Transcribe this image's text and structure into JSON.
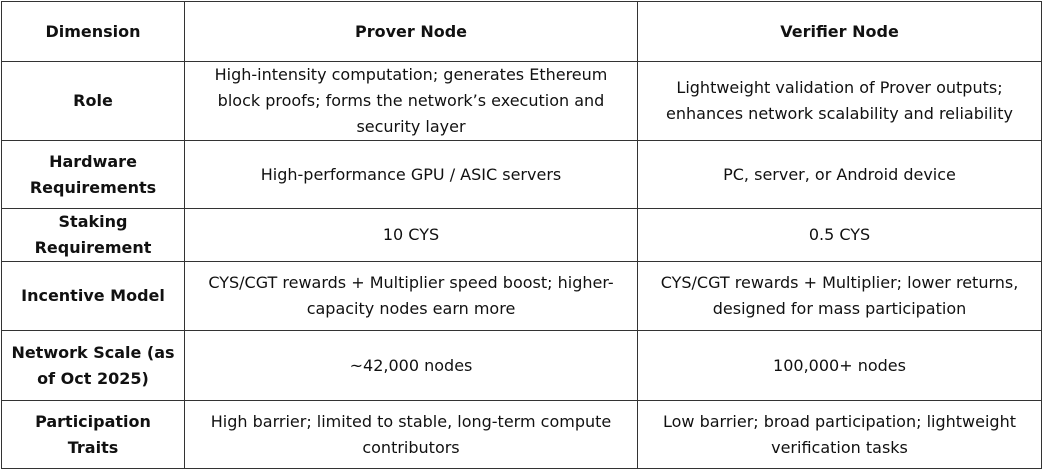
{
  "table": {
    "headers": [
      "Dimension",
      "Prover Node",
      "Verifier Node"
    ],
    "rows": [
      {
        "dimension": "Role",
        "prover": "High-intensity computation; generates Ethereum block proofs; forms the network’s execution and security layer",
        "verifier": "Lightweight validation of Prover outputs; enhances network scalability and reliability"
      },
      {
        "dimension": "Hardware Requirements",
        "prover": "High-performance GPU / ASIC servers",
        "verifier": "PC, server, or Android device"
      },
      {
        "dimension": "Staking Requirement",
        "prover": "10 CYS",
        "verifier": "0.5 CYS"
      },
      {
        "dimension": "Incentive Model",
        "prover": "CYS/CGT rewards + Multiplier speed boost; higher-capacity nodes earn more",
        "verifier": "CYS/CGT rewards + Multiplier; lower returns, designed for mass participation"
      },
      {
        "dimension": "Network Scale (as of Oct 2025)",
        "prover": "~42,000 nodes",
        "verifier": "100,000+ nodes"
      },
      {
        "dimension": "Participation Traits",
        "prover": "High barrier; limited to stable, long-term compute contributors",
        "verifier": "Low barrier; broad participation; lightweight verification tasks"
      }
    ]
  }
}
